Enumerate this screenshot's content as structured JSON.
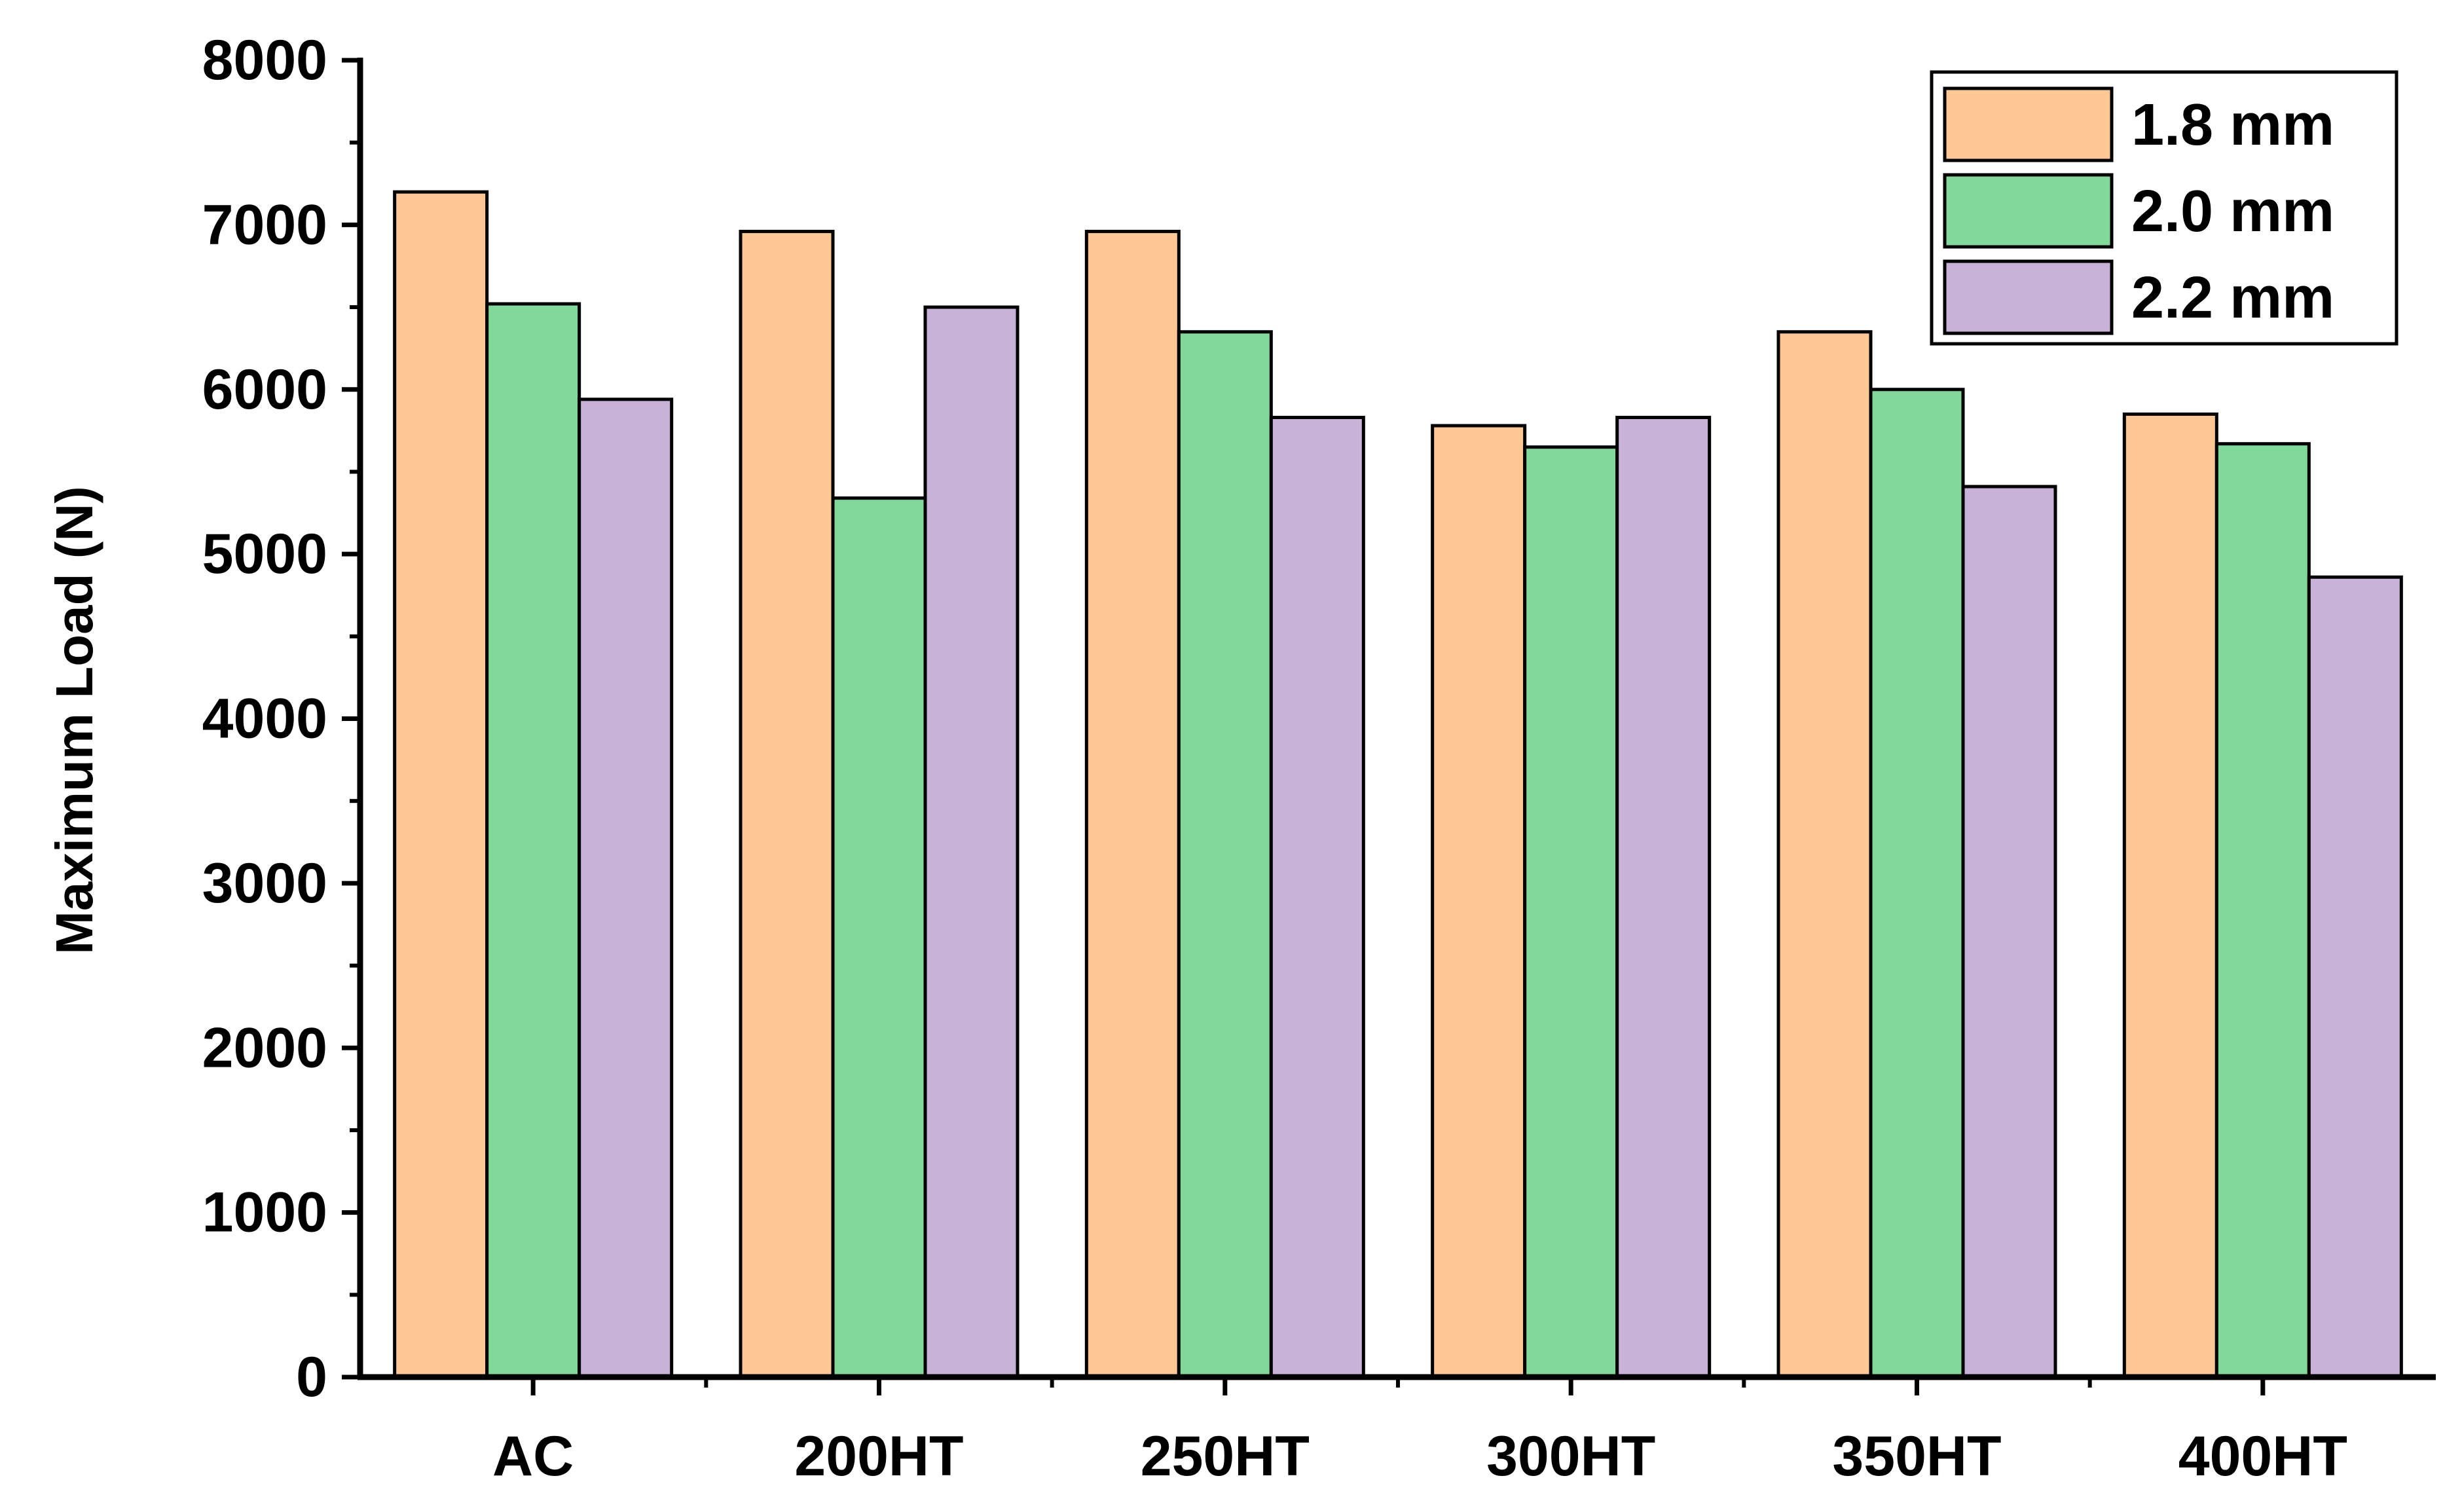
{
  "chart_data": {
    "type": "bar",
    "title": "",
    "xlabel": "",
    "ylabel": "Maximum Load (N)",
    "ylim": [
      0,
      8000
    ],
    "yticks": [
      "0",
      "1000",
      "2000",
      "3000",
      "4000",
      "5000",
      "6000",
      "7000",
      "8000"
    ],
    "categories": [
      "AC",
      "200HT",
      "250HT",
      "300HT",
      "350HT",
      "400HT"
    ],
    "series": [
      {
        "name": "1.8 mm",
        "color": "#FDC793",
        "values": [
          7200,
          6960,
          6960,
          5780,
          6350,
          5850
        ]
      },
      {
        "name": "2.0 mm",
        "color": "#80D899",
        "values": [
          6520,
          5340,
          6350,
          5650,
          6000,
          5670
        ]
      },
      {
        "name": "2.2 mm",
        "color": "#C8B2D8",
        "values": [
          5940,
          6500,
          5830,
          5830,
          5410,
          4860
        ]
      }
    ],
    "grid": false,
    "legend_position": "top-right"
  }
}
